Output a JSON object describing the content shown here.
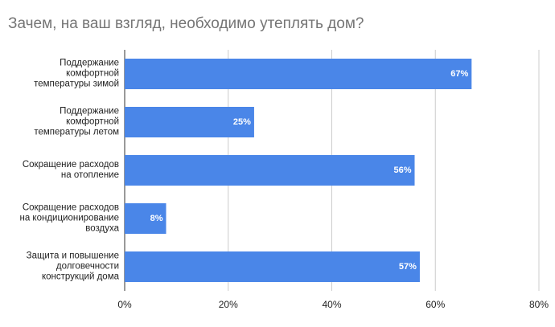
{
  "chart_data": {
    "type": "hbar",
    "title": "Зачем, на ваш взгляд, необходимо утеплять дом?",
    "categories": [
      "Поддержание\nкомфортной\nтемпературы зимой",
      "Поддержание\nкомфортной\nтемпературы летом",
      "Сокращение расходов\nна отопление",
      "Сокращение расходов\nна кондиционирование\nвоздуха",
      "Защита и повышение\nдолговечности\nконструкций дома"
    ],
    "values": [
      67,
      25,
      56,
      8,
      57
    ],
    "value_labels": [
      "67%",
      "25%",
      "56%",
      "8%",
      "57%"
    ],
    "color": "#4a86e8",
    "xlim": [
      0,
      80
    ],
    "xticks": [
      {
        "value": 0,
        "label": "0%"
      },
      {
        "value": 20,
        "label": "20%"
      },
      {
        "value": 40,
        "label": "40%"
      },
      {
        "value": 60,
        "label": "60%"
      },
      {
        "value": 80,
        "label": "80%"
      }
    ],
    "grid": true
  }
}
